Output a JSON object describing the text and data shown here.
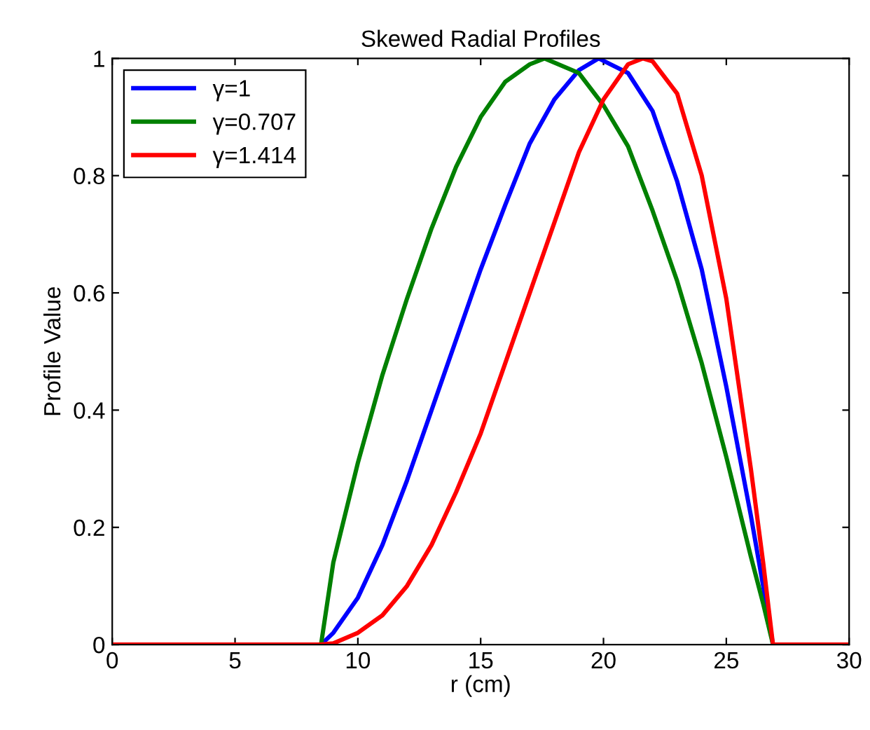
{
  "chart_data": {
    "type": "line",
    "title": "Skewed Radial Profiles",
    "xlabel": "r (cm)",
    "ylabel": "Profile Value",
    "xlim": [
      0,
      30
    ],
    "ylim": [
      0,
      1
    ],
    "xticks": [
      0,
      5,
      10,
      15,
      20,
      25,
      30
    ],
    "yticks": [
      0,
      0.2,
      0.4,
      0.6,
      0.8,
      1
    ],
    "grid": false,
    "legend": "top left",
    "marker": "none",
    "line_style": "solid",
    "series": [
      {
        "name": "γ=1",
        "color": "#0000ff",
        "x": [
          0,
          8.5,
          9,
          10,
          11,
          12,
          13,
          14,
          15,
          16,
          17,
          18,
          19,
          19.8,
          21,
          22,
          23,
          24,
          25,
          26,
          26.5,
          26.9,
          30
        ],
        "values": [
          0,
          0,
          0.02,
          0.08,
          0.17,
          0.28,
          0.4,
          0.52,
          0.64,
          0.75,
          0.855,
          0.93,
          0.98,
          1,
          0.975,
          0.91,
          0.79,
          0.64,
          0.44,
          0.22,
          0.1,
          0,
          0
        ]
      },
      {
        "name": "γ=0.707",
        "color": "#008000",
        "x": [
          0,
          8.5,
          9,
          10,
          11,
          12,
          13,
          14,
          15,
          16,
          17,
          17.6,
          19,
          20,
          21,
          22,
          23,
          24,
          25,
          26,
          26.5,
          26.9,
          30
        ],
        "values": [
          0,
          0,
          0.14,
          0.31,
          0.46,
          0.59,
          0.71,
          0.815,
          0.9,
          0.96,
          0.99,
          1,
          0.975,
          0.92,
          0.85,
          0.74,
          0.62,
          0.48,
          0.32,
          0.15,
          0.07,
          0,
          0
        ]
      },
      {
        "name": "γ=1.414",
        "color": "#ff0000",
        "x": [
          0,
          8.5,
          9,
          10,
          11,
          12,
          13,
          14,
          15,
          16,
          17,
          18,
          19,
          20,
          21,
          21.6,
          22,
          23,
          24,
          25,
          26,
          26.5,
          26.9,
          30
        ],
        "values": [
          0,
          0,
          0.002,
          0.02,
          0.05,
          0.1,
          0.17,
          0.26,
          0.36,
          0.48,
          0.6,
          0.72,
          0.84,
          0.93,
          0.99,
          1,
          0.995,
          0.94,
          0.8,
          0.59,
          0.3,
          0.14,
          0,
          0
        ]
      }
    ]
  }
}
